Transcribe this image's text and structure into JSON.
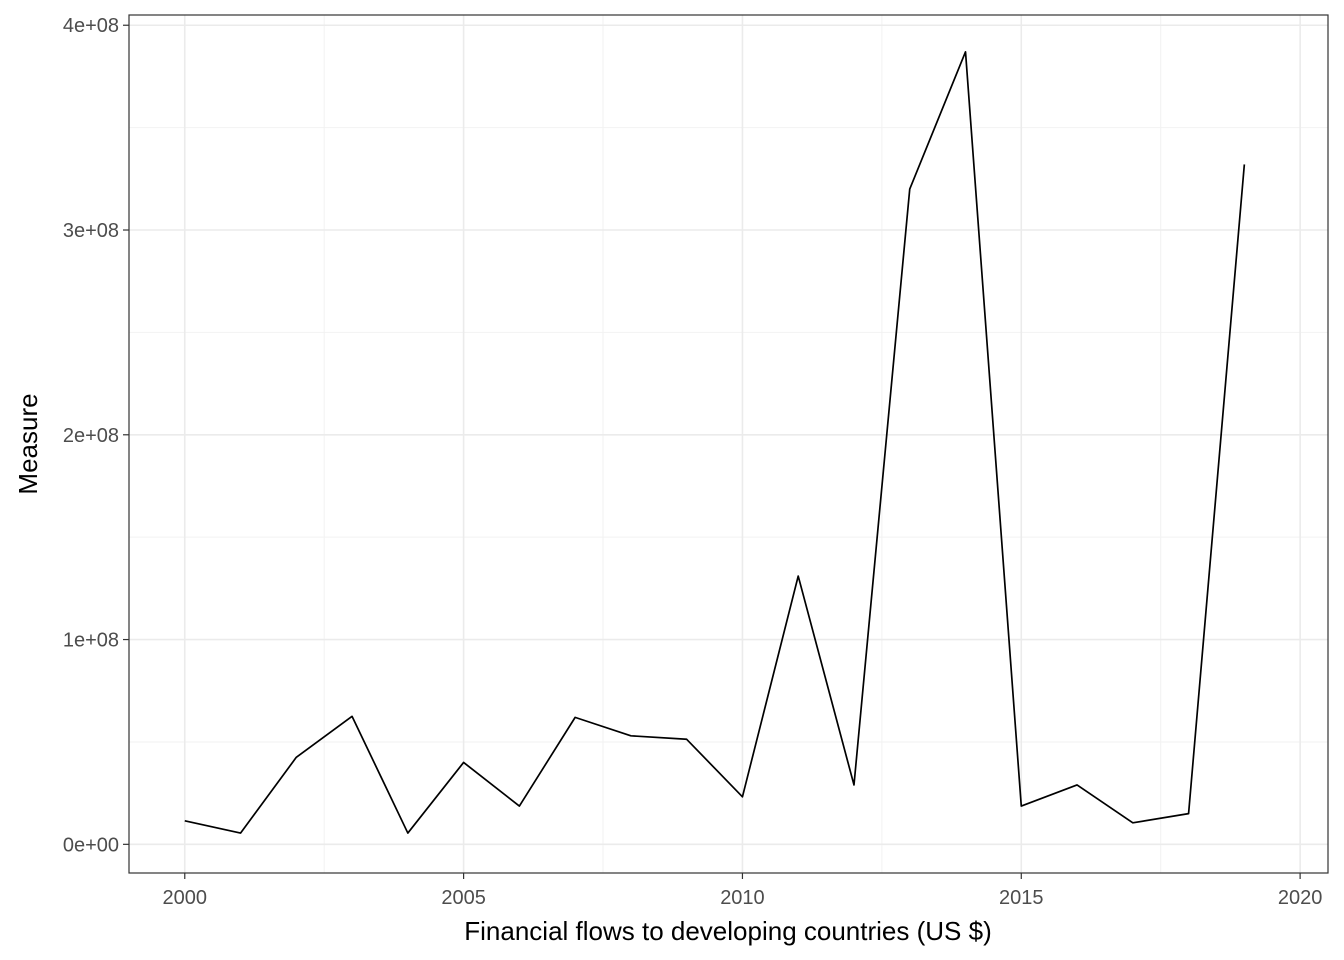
{
  "chart_data": {
    "type": "line",
    "title": "",
    "xlabel": "Financial flows to developing countries (US $)",
    "ylabel": "Measure",
    "xlim": [
      1999.0,
      2020.5
    ],
    "ylim": [
      -14000000,
      405000000
    ],
    "x_ticks": [
      2000,
      2005,
      2010,
      2015,
      2020
    ],
    "x_tick_labels": [
      "2000",
      "2005",
      "2010",
      "2015",
      "2020"
    ],
    "y_ticks": [
      0,
      100000000,
      200000000,
      300000000,
      400000000
    ],
    "y_tick_labels": [
      "0e+00",
      "1e+08",
      "2e+08",
      "3e+08",
      "4e+08"
    ],
    "grid": true,
    "series": [
      {
        "color": "#000000",
        "x": [
          2000,
          2001,
          2002,
          2003,
          2004,
          2005,
          2006,
          2007,
          2008,
          2009,
          2010,
          2011,
          2012,
          2013,
          2014,
          2015,
          2016,
          2017,
          2018,
          2019
        ],
        "y": [
          11500000,
          5500000,
          42500000,
          62500000,
          5500000,
          40000000,
          18700000,
          62000000,
          53000000,
          51300000,
          23200000,
          131000000,
          29000000,
          320000000,
          387000000,
          18700000,
          29000000,
          10500000,
          15000000,
          332000000
        ]
      }
    ]
  }
}
